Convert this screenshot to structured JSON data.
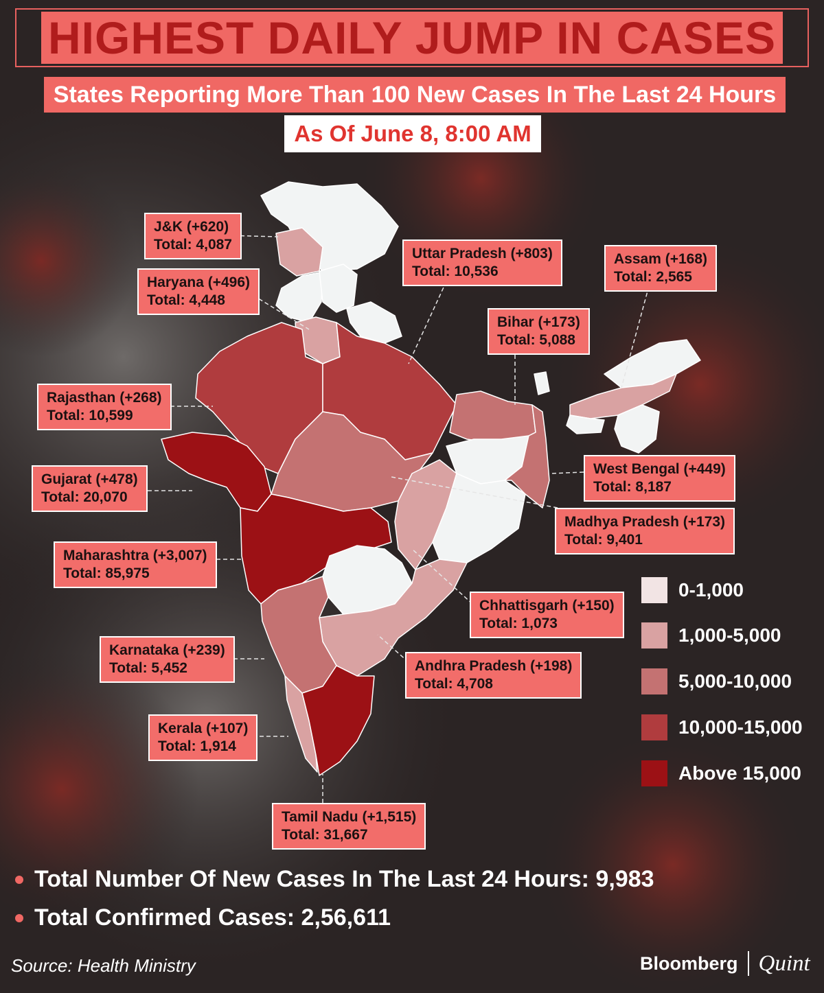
{
  "title": "HIGHEST DAILY JUMP IN CASES",
  "subtitle": "States Reporting More Than 100 New Cases In The Last 24 Hours",
  "as_of": "As Of June 8, 8:00 AM",
  "colors": {
    "accent": "#f06864",
    "range_0_1000": "#f2e4e4",
    "range_1000_5000": "#d9a2a2",
    "range_5000_10000": "#c47272",
    "range_10000_15000": "#b03c3e",
    "range_above_15000": "#9c1115"
  },
  "legend": [
    {
      "label": "0-1,000",
      "color": "#f2e4e4"
    },
    {
      "label": "1,000-5,000",
      "color": "#d9a2a2"
    },
    {
      "label": "5,000-10,000",
      "color": "#c47272"
    },
    {
      "label": "10,000-15,000",
      "color": "#b03c3e"
    },
    {
      "label": "Above 15,000",
      "color": "#9c1115"
    }
  ],
  "states": [
    {
      "name": "J&K",
      "new": "(+620)",
      "total": "Total: 4,087",
      "range": "1,000-5,000"
    },
    {
      "name": "Haryana",
      "new": "(+496)",
      "total": "Total: 4,448",
      "range": "1,000-5,000"
    },
    {
      "name": "Uttar Pradesh",
      "new": "(+803)",
      "total": "Total: 10,536",
      "range": "10,000-15,000"
    },
    {
      "name": "Assam",
      "new": "(+168)",
      "total": "Total: 2,565",
      "range": "1,000-5,000"
    },
    {
      "name": "Bihar",
      "new": "(+173)",
      "total": "Total: 5,088",
      "range": "5,000-10,000"
    },
    {
      "name": "Rajasthan",
      "new": "(+268)",
      "total": "Total: 10,599",
      "range": "10,000-15,000"
    },
    {
      "name": "Gujarat",
      "new": "(+478)",
      "total": "Total: 20,070",
      "range": "Above 15,000"
    },
    {
      "name": "West Bengal",
      "new": "(+449)",
      "total": "Total: 8,187",
      "range": "5,000-10,000"
    },
    {
      "name": "Madhya Pradesh",
      "new": "(+173)",
      "total": "Total: 9,401",
      "range": "5,000-10,000"
    },
    {
      "name": "Maharashtra",
      "new": "(+3,007)",
      "total": "Total: 85,975",
      "range": "Above 15,000"
    },
    {
      "name": "Chhattisgarh",
      "new": "(+150)",
      "total": "Total: 1,073",
      "range": "1,000-5,000"
    },
    {
      "name": "Karnataka",
      "new": "(+239)",
      "total": "Total: 5,452",
      "range": "5,000-10,000"
    },
    {
      "name": "Andhra Pradesh",
      "new": "(+198)",
      "total": "Total: 4,708",
      "range": "1,000-5,000"
    },
    {
      "name": "Kerala",
      "new": "(+107)",
      "total": "Total: 1,914",
      "range": "1,000-5,000"
    },
    {
      "name": "Tamil Nadu",
      "new": "(+1,515)",
      "total": "Total: 31,667",
      "range": "Above 15,000"
    }
  ],
  "stats": {
    "new_cases": "Total Number Of New Cases In The Last 24 Hours: 9,983",
    "confirmed": "Total Confirmed Cases: 2,56,611"
  },
  "source": "Source: Health Ministry",
  "brand": {
    "bloomberg": "Bloomberg",
    "quint": "Quint"
  }
}
